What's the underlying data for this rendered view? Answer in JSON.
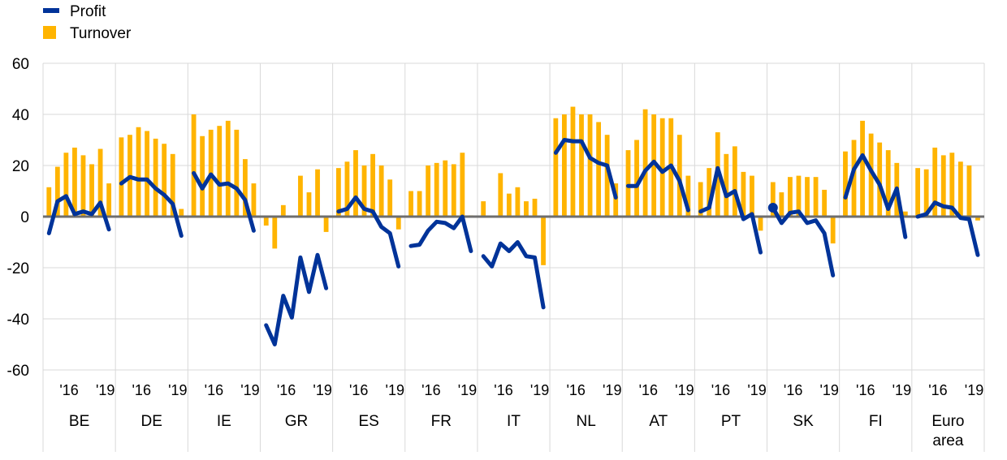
{
  "chart_data": {
    "type": "bar",
    "legend": {
      "placement": "top-left",
      "entries": [
        {
          "label": "Profit",
          "kind": "line",
          "color": "#003399"
        },
        {
          "label": "Turnover",
          "kind": "bar",
          "color": "#FFB400"
        }
      ]
    },
    "ylim": [
      -60,
      60
    ],
    "yticks": [
      "60",
      "40",
      "20",
      "0",
      "-20",
      "-40",
      "-60"
    ],
    "ytick_values": [
      60,
      40,
      20,
      0,
      -20,
      -40,
      -60
    ],
    "grid": true,
    "x_tick_labels": [
      "'16",
      "'19"
    ],
    "groups": [
      {
        "label": [
          "BE"
        ],
        "turnover": [
          11.5,
          19.5,
          25,
          27,
          24,
          20.5,
          26.5,
          13
        ],
        "profit": [
          -6.5,
          6,
          8,
          1,
          2,
          1,
          5.5,
          -5
        ]
      },
      {
        "label": [
          "DE"
        ],
        "turnover": [
          31,
          32,
          35,
          33.5,
          30.5,
          28.5,
          24.5,
          3
        ],
        "profit": [
          13,
          15.5,
          14.5,
          14.5,
          11,
          8.5,
          5,
          -7.5
        ]
      },
      {
        "label": [
          "IE"
        ],
        "turnover": [
          40,
          31.5,
          34,
          35.5,
          37.5,
          34,
          22.5,
          13
        ],
        "profit": [
          17,
          11,
          16.5,
          12.5,
          13,
          11,
          6.5,
          -5.5
        ]
      },
      {
        "label": [
          "GR"
        ],
        "turnover": [
          -3.5,
          -12.5,
          4.5,
          0,
          16,
          9.5,
          18.5,
          -6
        ],
        "profit": [
          -42.5,
          -50,
          -31,
          -39.5,
          -16,
          -29.5,
          -15,
          -28
        ]
      },
      {
        "label": [
          "ES"
        ],
        "turnover": [
          19,
          21.5,
          26,
          20,
          24.5,
          20,
          14.5,
          -5
        ],
        "profit": [
          2,
          3,
          7.5,
          3,
          2,
          -4,
          -6.5,
          -19.5
        ]
      },
      {
        "label": [
          "FR"
        ],
        "turnover": [
          10,
          10,
          20,
          21,
          22,
          20.5,
          25,
          0.5
        ],
        "profit": [
          -11.5,
          -11,
          -5.5,
          -2,
          -2.5,
          -4.5,
          0,
          -13.5
        ]
      },
      {
        "label": [
          "IT"
        ],
        "turnover": [
          6,
          0,
          17,
          9,
          11.5,
          6,
          7,
          -19
        ],
        "profit": [
          -15.5,
          -19.5,
          -10.5,
          -13.5,
          -10,
          -15.5,
          -16,
          -35.5
        ]
      },
      {
        "label": [
          "NL"
        ],
        "turnover": [
          38.5,
          40,
          43,
          40,
          40,
          37,
          32,
          13
        ],
        "profit": [
          25,
          30,
          29.5,
          29.5,
          23,
          21,
          20,
          7.5
        ]
      },
      {
        "label": [
          "AT"
        ],
        "turnover": [
          26,
          30,
          42,
          40,
          38.5,
          38.5,
          32,
          16
        ],
        "profit": [
          12,
          12,
          18,
          21.5,
          17.5,
          20,
          14,
          2.5
        ]
      },
      {
        "label": [
          "PT"
        ],
        "turnover": [
          13.5,
          19,
          33,
          24.5,
          27.5,
          17.5,
          16,
          -5.5
        ],
        "profit": [
          2,
          3.5,
          19,
          8,
          10,
          -1,
          1,
          -14
        ]
      },
      {
        "label": [
          "SK"
        ],
        "turnover": [
          13.5,
          9.5,
          15.5,
          16,
          15.5,
          15.5,
          10.5,
          -10.5
        ],
        "profit": [
          3.5,
          -2.5,
          1.5,
          2,
          -2.5,
          -1.5,
          -6.5,
          -23
        ]
      },
      {
        "label": [
          "FI"
        ],
        "turnover": [
          25.5,
          30,
          37.5,
          32.5,
          29,
          26,
          21,
          2
        ],
        "profit": [
          7.5,
          18.5,
          24,
          18,
          12.5,
          3,
          11,
          -8
        ]
      },
      {
        "label": [
          "Euro",
          "area"
        ],
        "turnover": [
          19,
          18.5,
          27,
          24,
          25,
          21.5,
          20,
          -1.5
        ],
        "profit": [
          0,
          1,
          5.5,
          4,
          3.5,
          -0.5,
          -1,
          -15
        ]
      }
    ]
  }
}
